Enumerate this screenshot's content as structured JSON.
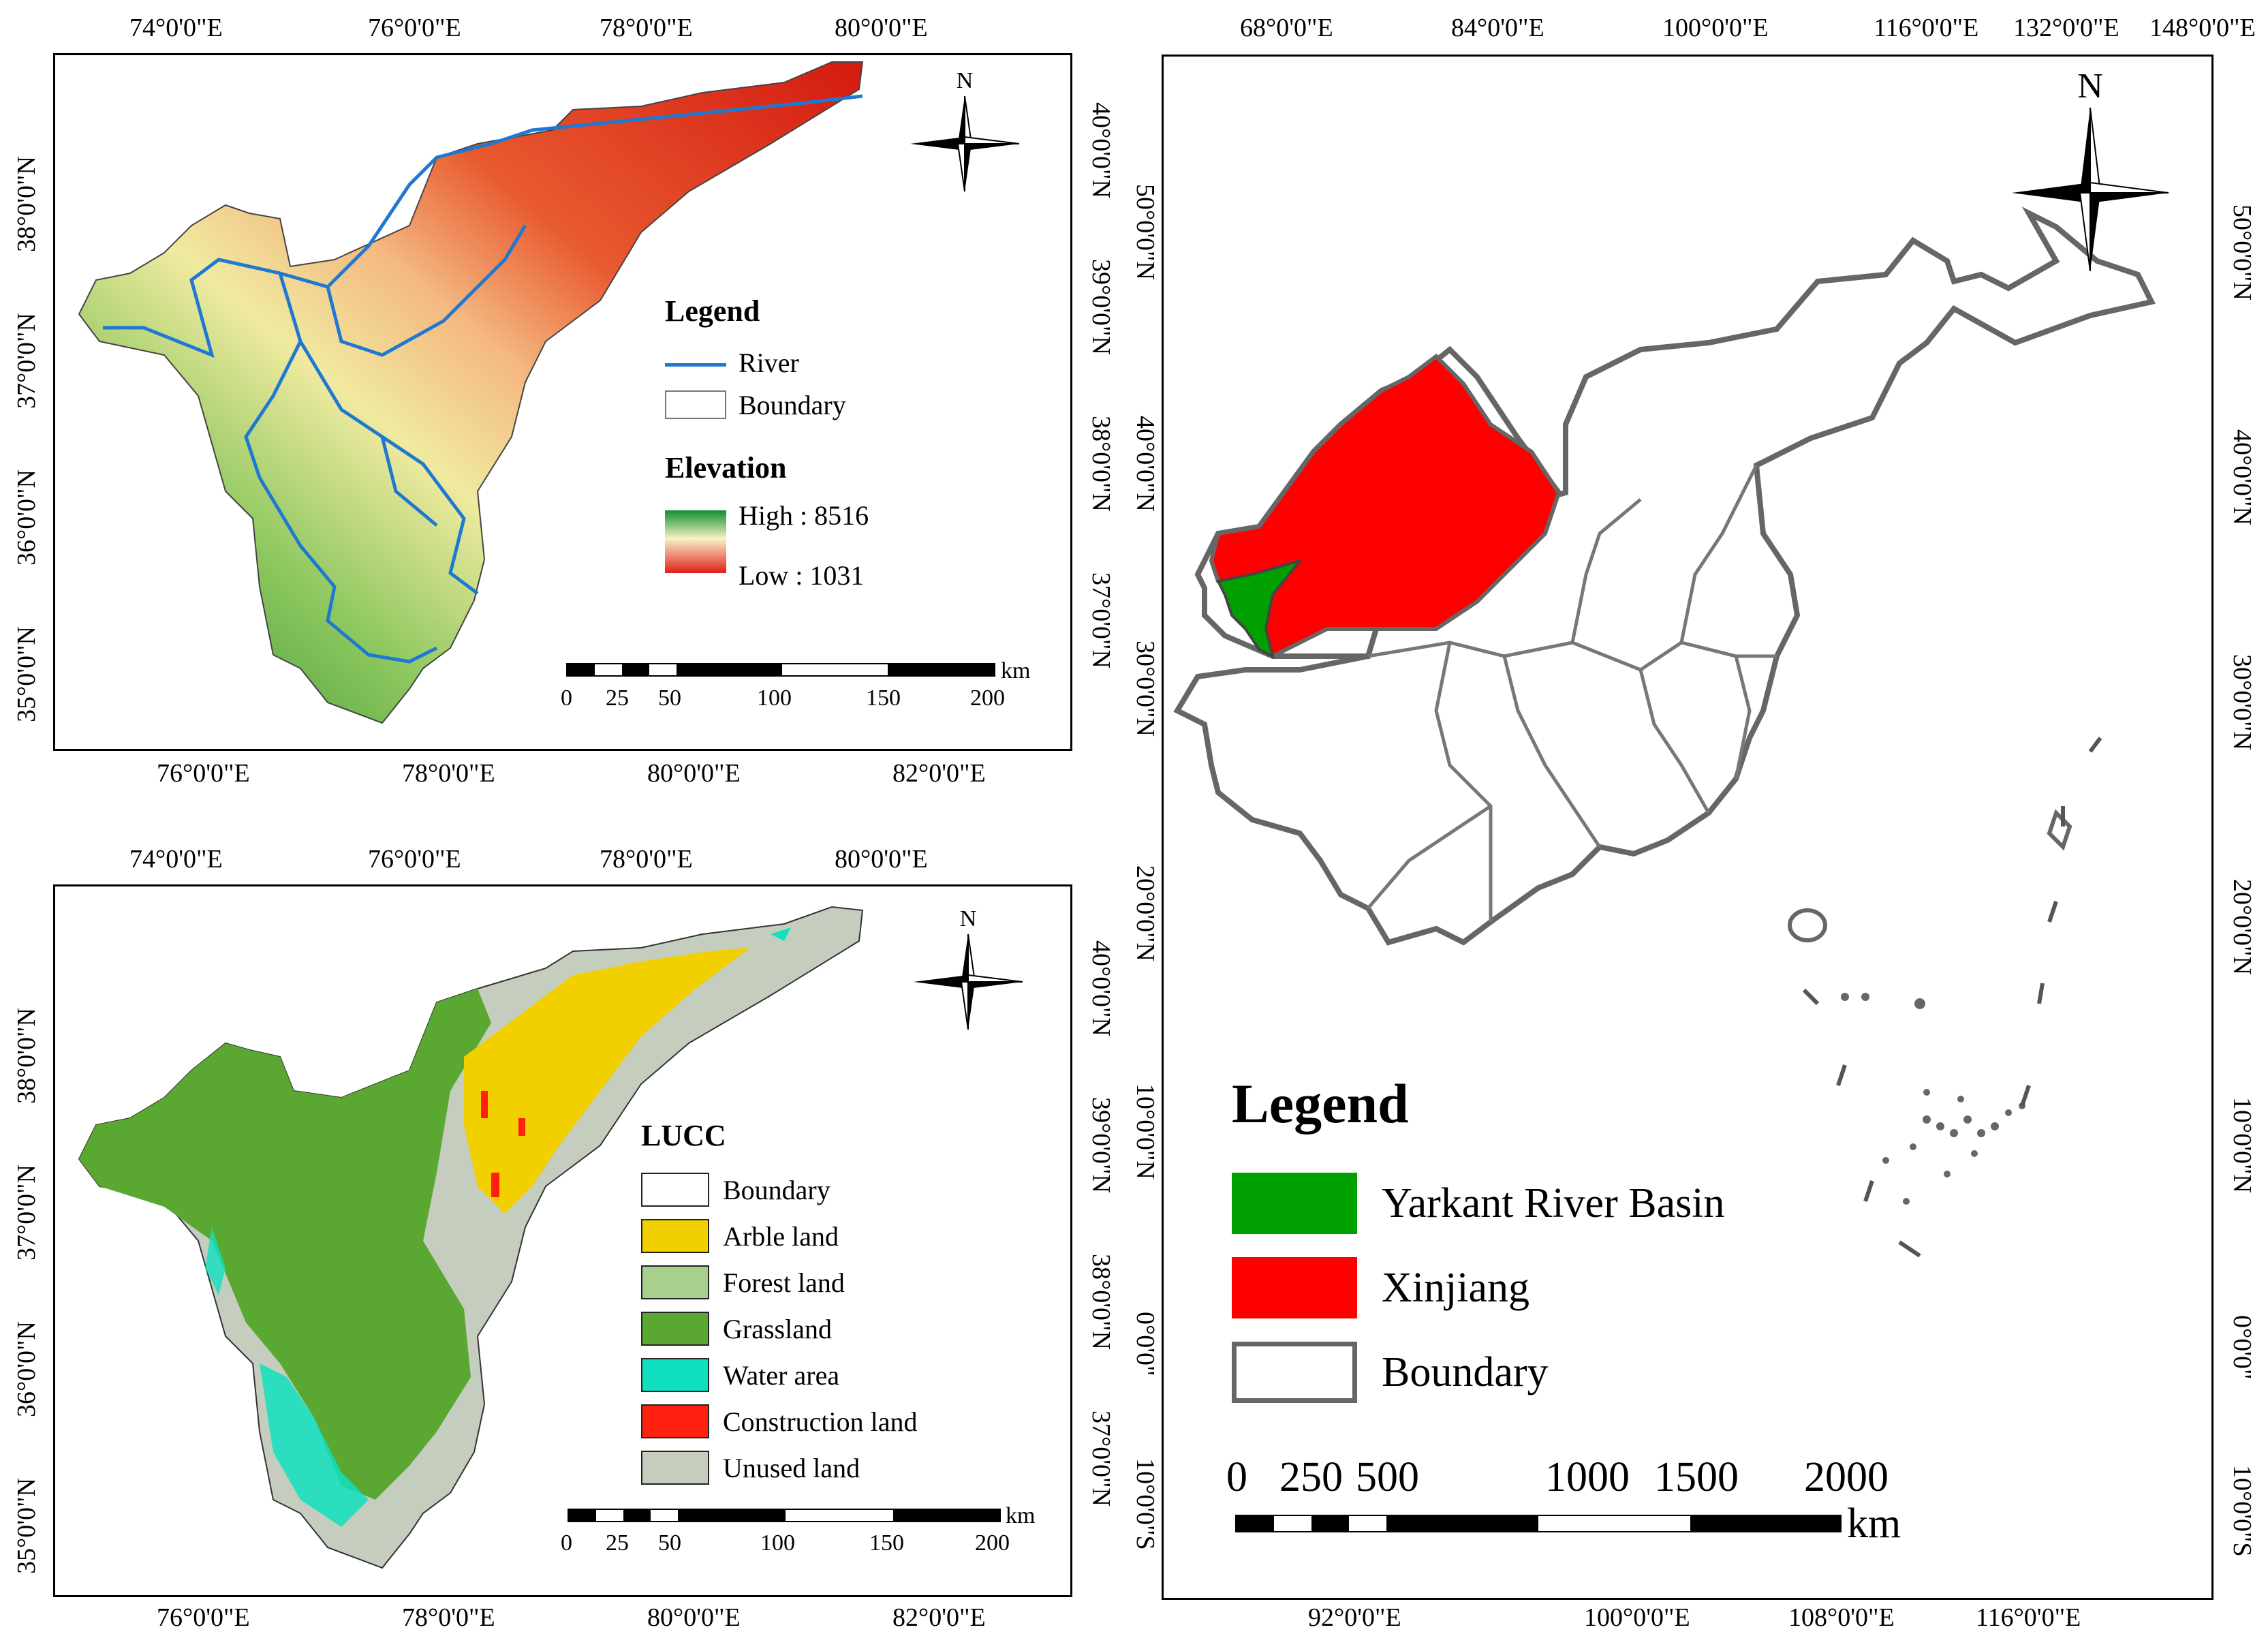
{
  "colors": {
    "river": "#1f78d1",
    "boundary_line": "#555555",
    "yarkant": "#00a000",
    "xinjiang": "#ff0000",
    "elev_high": "#109030",
    "elev_low": "#e02010",
    "arable": "#f2d000",
    "forest": "#a7d08c",
    "grassland": "#5aa832",
    "water": "#10e0c0",
    "construction": "#ff2010",
    "unused": "#c4cdbe"
  },
  "map_top_left": {
    "top_ticks": [
      "74°0'0\"E",
      "76°0'0\"E",
      "78°0'0\"E",
      "80°0'0\"E"
    ],
    "bottom_ticks": [
      "76°0'0\"E",
      "78°0'0\"E",
      "80°0'0\"E",
      "82°0'0\"E"
    ],
    "left_ticks": [
      "38°0'0\"N",
      "37°0'0\"N",
      "36°0'0\"N",
      "35°0'0\"N"
    ],
    "right_ticks": [
      "40°0'0\"N",
      "39°0'0\"N",
      "38°0'0\"N",
      "37°0'0\"N"
    ],
    "north_label": "N",
    "legend_title": "Legend",
    "river_label": "River",
    "boundary_label": "Boundary",
    "elevation_title": "Elevation",
    "high_label": "High : 8516",
    "low_label": "Low : 1031",
    "scale_labels": [
      "0",
      "25",
      "50",
      "100",
      "150",
      "200"
    ],
    "scale_unit": "km"
  },
  "map_bottom_left": {
    "top_ticks": [
      "74°0'0\"E",
      "76°0'0\"E",
      "78°0'0\"E",
      "80°0'0\"E"
    ],
    "bottom_ticks": [
      "76°0'0\"E",
      "78°0'0\"E",
      "80°0'0\"E",
      "82°0'0\"E"
    ],
    "left_ticks": [
      "38°0'0\"N",
      "37°0'0\"N",
      "36°0'0\"N",
      "35°0'0\"N"
    ],
    "right_ticks": [
      "40°0'0\"N",
      "39°0'0\"N",
      "38°0'0\"N",
      "37°0'0\"N"
    ],
    "north_label": "N",
    "legend_title": "LUCC",
    "classes": [
      "Boundary",
      "Arble land",
      "Forest land",
      "Grassland",
      "Water area",
      "Construction land",
      "Unused land"
    ],
    "scale_labels": [
      "0",
      "25",
      "50",
      "100",
      "150",
      "200"
    ],
    "scale_unit": "km"
  },
  "map_right": {
    "top_ticks": [
      "68°0'0\"E",
      "84°0'0\"E",
      "100°0'0\"E",
      "116°0'0\"E",
      "132°0'0\"E",
      "148°0'0\"E"
    ],
    "bottom_ticks": [
      "92°0'0\"E",
      "100°0'0\"E",
      "108°0'0\"E",
      "116°0'0\"E"
    ],
    "left_ticks": [
      "50°0'0\"N",
      "40°0'0\"N",
      "30°0'0\"N",
      "20°0'0\"N",
      "10°0'0\"N",
      "0°0'0\"",
      "10°0'0\"S"
    ],
    "right_ticks": [
      "50°0'0\"N",
      "40°0'0\"N",
      "30°0'0\"N",
      "20°0'0\"N",
      "10°0'0\"N",
      "0°0'0\"",
      "10°0'0\"S"
    ],
    "north_label": "N",
    "legend_title": "Legend",
    "legend_items": [
      "Yarkant River Basin",
      "Xinjiang",
      "Boundary"
    ],
    "scale_labels": [
      "0",
      "250",
      "500",
      "1000",
      "1500",
      "2000"
    ],
    "scale_unit": "km"
  }
}
